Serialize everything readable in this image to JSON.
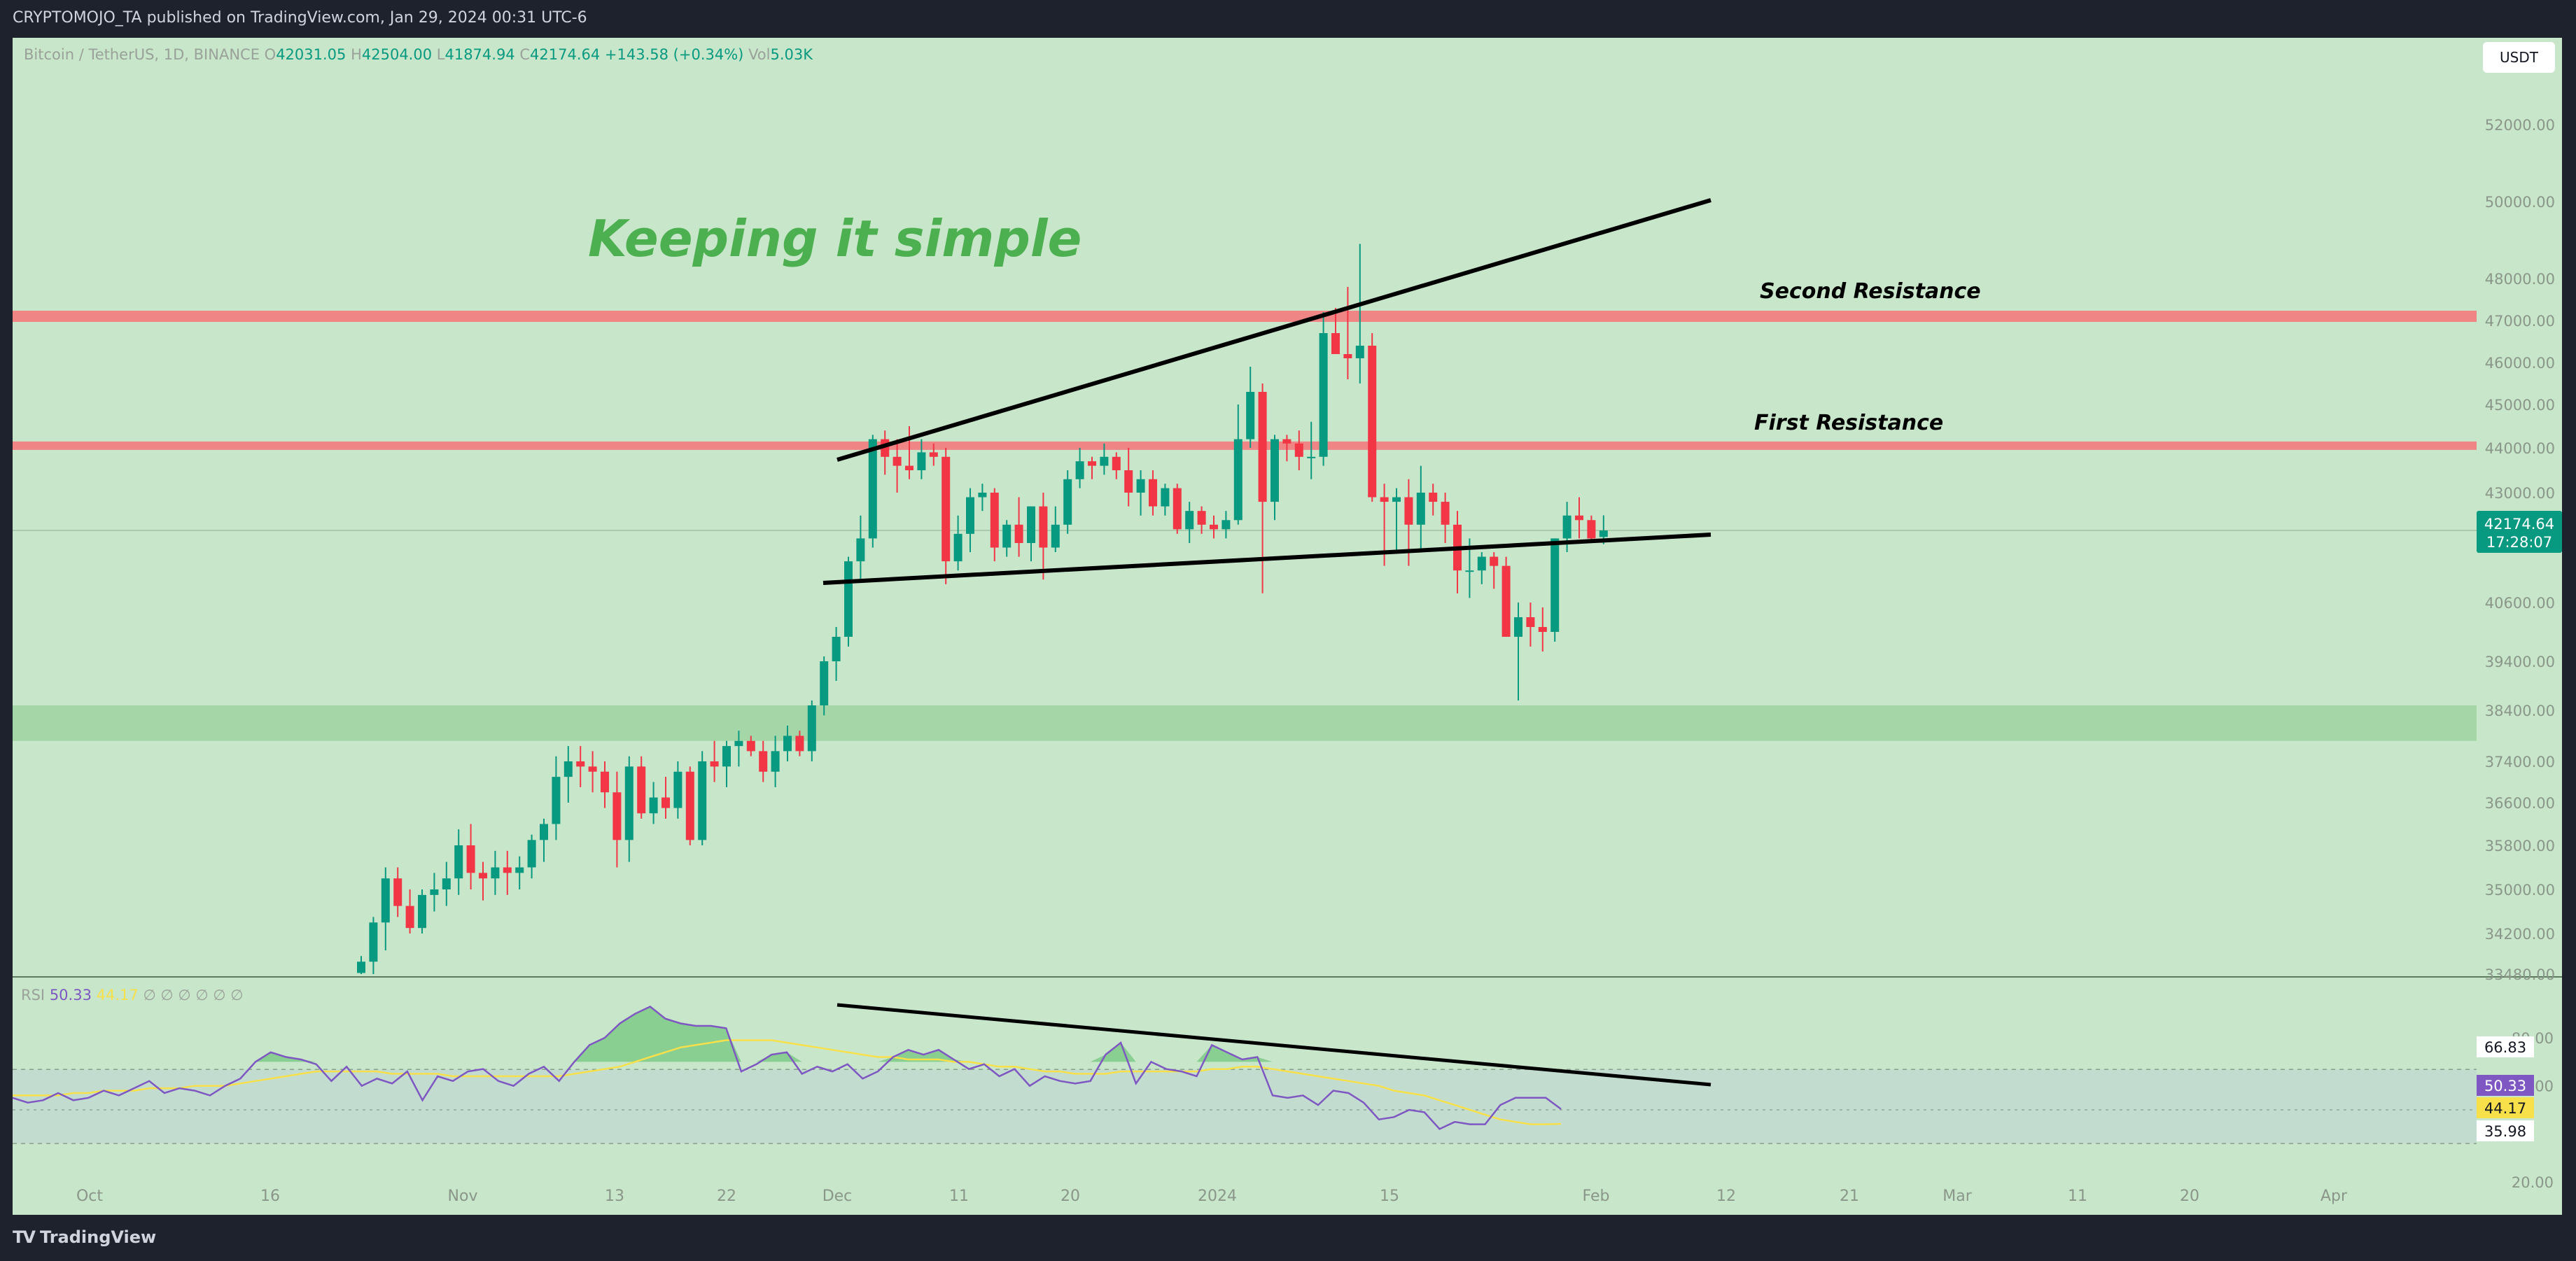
{
  "header": {
    "publisher": "CRYPTOMOJO_TA published on TradingView.com, Jan 29, 2024 00:31 UTC-6"
  },
  "footer": {
    "brand": "TradingView"
  },
  "legend": {
    "symbol": "Bitcoin / TetherUS, 1D, BINANCE",
    "open_label": "O",
    "open": "42031.05",
    "high_label": "H",
    "high": "42504.00",
    "low_label": "L",
    "low": "41874.94",
    "close_label": "C",
    "close": "42174.64",
    "change": "+143.58 (+0.34%)",
    "vol_label": "Vol",
    "vol": "5.03K"
  },
  "currency": "USDT",
  "rsi_legend": {
    "name": "RSI",
    "value": "50.33",
    "ma": "44.17",
    "rest": "∅ ∅ ∅ ∅ ∅ ∅"
  },
  "colors": {
    "background": "#c8e6c9",
    "up": "#089981",
    "down": "#f23645",
    "resistance": "#ef8585",
    "support": "#a5d6a7",
    "rsi": "#7e57c2",
    "rsi_ma": "#f7e04a",
    "title": "#4caf50",
    "trendline": "#000000"
  },
  "chart_data": [
    {
      "type": "candlestick",
      "series_name": "Bitcoin / TetherUS",
      "price_axis_ticks": [
        "52000.00",
        "50000.00",
        "48000.00",
        "47000.00",
        "46000.00",
        "45000.00",
        "44000.00",
        "43000.00",
        "40600.00",
        "39400.00",
        "38400.00",
        "37400.00",
        "36600.00",
        "35800.00",
        "35000.00",
        "34200.00",
        "33480.00"
      ],
      "time_axis_ticks": [
        "Oct",
        "16",
        "Nov",
        "13",
        "22",
        "Dec",
        "11",
        "20",
        "2024",
        "15",
        "Feb",
        "12",
        "21",
        "Mar",
        "11",
        "20",
        "Apr"
      ],
      "last_price": "42174.64",
      "countdown": "17:28:07",
      "annotations": {
        "title": "Keeping it simple",
        "second_resistance": "Second Resistance",
        "first_resistance": "First Resistance"
      },
      "levels": {
        "second_resistance_price": 47100,
        "first_resistance_price": 44050,
        "support_zone": [
          37800,
          38500
        ]
      },
      "candles": [
        [
          33500,
          33800,
          33480,
          33700
        ],
        [
          33700,
          34500,
          33480,
          34400
        ],
        [
          34400,
          35400,
          33900,
          35200
        ],
        [
          35200,
          35400,
          34500,
          34700
        ],
        [
          34700,
          35000,
          34200,
          34300
        ],
        [
          34300,
          35000,
          34200,
          34900
        ],
        [
          34900,
          35300,
          34600,
          35000
        ],
        [
          35000,
          35500,
          34700,
          35200
        ],
        [
          35200,
          36100,
          34900,
          35800
        ],
        [
          35800,
          36200,
          35000,
          35300
        ],
        [
          35300,
          35500,
          34800,
          35200
        ],
        [
          35200,
          35700,
          34900,
          35400
        ],
        [
          35400,
          35700,
          34900,
          35300
        ],
        [
          35300,
          35600,
          35000,
          35400
        ],
        [
          35400,
          36000,
          35200,
          35900
        ],
        [
          35900,
          36300,
          35500,
          36200
        ],
        [
          36200,
          37500,
          35900,
          37100
        ],
        [
          37100,
          37700,
          36600,
          37400
        ],
        [
          37400,
          37700,
          36900,
          37300
        ],
        [
          37300,
          37600,
          36800,
          37200
        ],
        [
          37200,
          37400,
          36500,
          36800
        ],
        [
          36800,
          37200,
          35400,
          35900
        ],
        [
          35900,
          37500,
          35500,
          37300
        ],
        [
          37300,
          37500,
          36300,
          36400
        ],
        [
          36400,
          37000,
          36200,
          36700
        ],
        [
          36700,
          37100,
          36300,
          36500
        ],
        [
          36500,
          37400,
          36300,
          37200
        ],
        [
          37200,
          37300,
          35800,
          35900
        ],
        [
          35900,
          37600,
          35800,
          37400
        ],
        [
          37400,
          37800,
          37000,
          37300
        ],
        [
          37300,
          37800,
          36900,
          37700
        ],
        [
          37700,
          38000,
          37300,
          37800
        ],
        [
          37800,
          37900,
          37500,
          37600
        ],
        [
          37600,
          37800,
          37000,
          37200
        ],
        [
          37200,
          37900,
          36900,
          37600
        ],
        [
          37600,
          38100,
          37400,
          37900
        ],
        [
          37900,
          38000,
          37500,
          37600
        ],
        [
          37600,
          38600,
          37400,
          38500
        ],
        [
          38500,
          39500,
          38300,
          39400
        ],
        [
          39400,
          40100,
          39000,
          39900
        ],
        [
          39900,
          41600,
          39700,
          41500
        ],
        [
          41500,
          42500,
          41100,
          42000
        ],
        [
          42000,
          44300,
          41800,
          44200
        ],
        [
          44200,
          44400,
          43400,
          43800
        ],
        [
          43800,
          44200,
          43000,
          43600
        ],
        [
          43600,
          44500,
          43300,
          43500
        ],
        [
          43500,
          44200,
          43300,
          43900
        ],
        [
          43900,
          44100,
          43600,
          43800
        ],
        [
          43800,
          44000,
          41000,
          41500
        ],
        [
          41500,
          42500,
          41300,
          42100
        ],
        [
          42100,
          43100,
          41700,
          42900
        ],
        [
          42900,
          43200,
          42600,
          43000
        ],
        [
          43000,
          43100,
          41500,
          41800
        ],
        [
          41800,
          42400,
          41600,
          42300
        ],
        [
          42300,
          42900,
          41600,
          41900
        ],
        [
          41900,
          42700,
          41500,
          42700
        ],
        [
          42700,
          43000,
          41100,
          41800
        ],
        [
          41800,
          42700,
          41700,
          42300
        ],
        [
          42300,
          43500,
          42100,
          43300
        ],
        [
          43300,
          44000,
          43100,
          43700
        ],
        [
          43700,
          43800,
          43300,
          43600
        ],
        [
          43600,
          44100,
          43400,
          43800
        ],
        [
          43800,
          43900,
          43300,
          43500
        ],
        [
          43500,
          44000,
          42700,
          43000
        ],
        [
          43000,
          43500,
          42500,
          43300
        ],
        [
          43300,
          43500,
          42500,
          42700
        ],
        [
          42700,
          43200,
          42500,
          43100
        ],
        [
          43100,
          43200,
          42100,
          42200
        ],
        [
          42200,
          42800,
          41900,
          42600
        ],
        [
          42600,
          42700,
          42100,
          42300
        ],
        [
          42300,
          42500,
          42000,
          42200
        ],
        [
          42200,
          42600,
          42000,
          42400
        ],
        [
          42400,
          45000,
          42300,
          44200
        ],
        [
          44200,
          45900,
          44000,
          45300
        ],
        [
          45300,
          45500,
          40800,
          42800
        ],
        [
          42800,
          44300,
          42400,
          44200
        ],
        [
          44200,
          44300,
          43700,
          44100
        ],
        [
          44100,
          44400,
          43500,
          43800
        ],
        [
          43800,
          44600,
          43300,
          43800
        ],
        [
          43800,
          47200,
          43600,
          46700
        ],
        [
          46700,
          47300,
          46300,
          46200
        ],
        [
          46200,
          47800,
          45600,
          46100
        ],
        [
          46100,
          48900,
          45500,
          46400
        ],
        [
          46400,
          46700,
          42800,
          42900
        ],
        [
          42900,
          43200,
          41400,
          42800
        ],
        [
          42800,
          43100,
          41700,
          42900
        ],
        [
          42900,
          43300,
          41400,
          42300
        ],
        [
          42300,
          43600,
          41700,
          43000
        ],
        [
          43000,
          43200,
          42500,
          42800
        ],
        [
          42800,
          43000,
          41900,
          42300
        ],
        [
          42300,
          42600,
          40800,
          41300
        ],
        [
          41300,
          42000,
          40700,
          41300
        ],
        [
          41300,
          41700,
          41000,
          41600
        ],
        [
          41600,
          41700,
          40900,
          41400
        ],
        [
          41400,
          41600,
          39900,
          39900
        ],
        [
          39900,
          40600,
          38600,
          40300
        ],
        [
          40300,
          40600,
          39700,
          40100
        ],
        [
          40100,
          40500,
          39600,
          40000
        ],
        [
          40000,
          42000,
          39800,
          42000
        ],
        [
          42000,
          42800,
          41700,
          42500
        ],
        [
          42500,
          42900,
          42000,
          42400
        ],
        [
          42400,
          42500,
          41900,
          42000
        ],
        [
          42031.05,
          42504,
          41874.94,
          42174.64
        ]
      ]
    },
    {
      "type": "line",
      "series": [
        {
          "name": "RSI",
          "values": [
            55,
            53,
            54,
            57,
            54,
            55,
            58,
            56,
            59,
            62,
            57,
            59,
            58,
            56,
            60,
            63,
            70,
            74,
            72,
            71,
            69,
            62,
            68,
            60,
            63,
            61,
            66,
            54,
            64,
            62,
            66,
            67,
            62,
            60,
            65,
            68,
            62,
            70,
            77,
            80,
            86,
            90,
            93,
            88,
            86,
            85,
            85,
            84,
            66,
            69,
            73,
            74,
            65,
            68,
            66,
            69,
            63,
            66,
            72,
            75,
            73,
            75,
            71,
            67,
            69,
            64,
            67,
            60,
            64,
            62,
            61,
            62,
            73,
            78,
            61,
            70,
            67,
            66,
            64,
            77,
            74,
            71,
            72,
            56,
            55,
            56,
            52,
            58,
            57,
            53,
            46,
            47,
            50,
            49,
            42,
            45,
            44,
            44,
            52,
            55,
            55,
            55,
            50.33
          ]
        },
        {
          "name": "RSI-based MA",
          "values": [
            56,
            56,
            56,
            56,
            57,
            57,
            58,
            58,
            58,
            59,
            59,
            59,
            60,
            60,
            60,
            61,
            62,
            63,
            64,
            65,
            66,
            66,
            66,
            66,
            66,
            65,
            65,
            65,
            65,
            64,
            64,
            64,
            64,
            64,
            64,
            64,
            64,
            65,
            66,
            67,
            68,
            70,
            72,
            74,
            76,
            77,
            78,
            79,
            79,
            79,
            79,
            78,
            77,
            76,
            75,
            74,
            73,
            72,
            72,
            71,
            71,
            71,
            70,
            70,
            69,
            68,
            68,
            67,
            66,
            66,
            65,
            65,
            65,
            66,
            66,
            66,
            66,
            66,
            66,
            67,
            67,
            68,
            68,
            67,
            66,
            65,
            64,
            63,
            62,
            61,
            60,
            58,
            57,
            56,
            54,
            52,
            50,
            48,
            46,
            45,
            44,
            44,
            44.17
          ]
        }
      ],
      "ylim": [
        0,
        100
      ],
      "y_ticks": [
        "80.00",
        "60.00",
        "20.00"
      ],
      "band": [
        35.98,
        66.83
      ],
      "band_labels": [
        "66.83",
        "35.98"
      ],
      "value_labels": [
        "50.33",
        "44.17"
      ]
    }
  ]
}
